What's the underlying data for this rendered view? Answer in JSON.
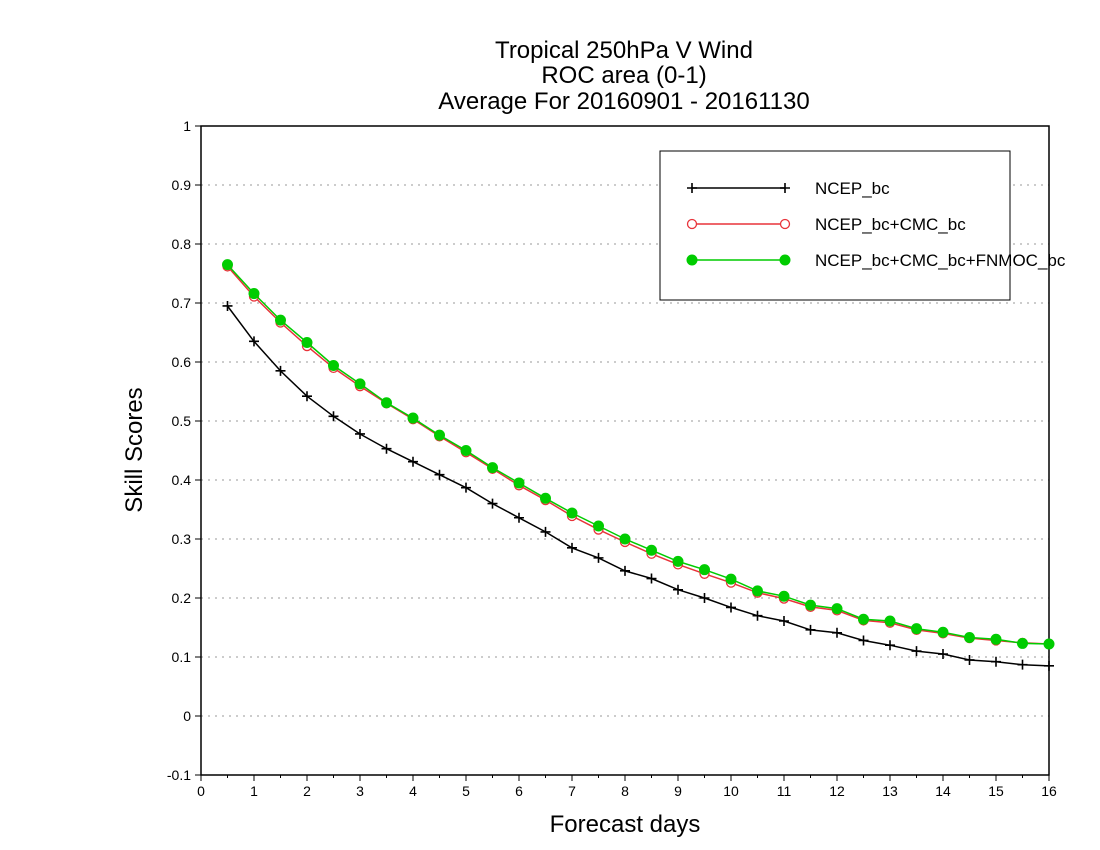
{
  "chart_data": {
    "type": "line",
    "title_lines": [
      "Tropical 250hPa V Wind",
      "ROC area (0-1)",
      "Average For 20160901 - 20161130"
    ],
    "xlabel": "Forecast days",
    "ylabel": "Skill Scores",
    "xlim": [
      0,
      16
    ],
    "ylim": [
      -0.1,
      1
    ],
    "xticks": [
      0,
      1,
      2,
      3,
      4,
      5,
      6,
      7,
      8,
      9,
      10,
      11,
      12,
      13,
      14,
      15,
      16
    ],
    "yticks": [
      -0.1,
      0,
      0.1,
      0.2,
      0.3,
      0.4,
      0.5,
      0.6,
      0.7,
      0.8,
      0.9,
      1
    ],
    "ytick_labels": [
      "-0.1",
      "0",
      "0.1",
      "0.2",
      "0.3",
      "0.4",
      "0.5",
      "0.6",
      "0.7",
      "0.8",
      "0.9",
      "1"
    ],
    "grid": "horizontal dotted",
    "legend_position": "top-right",
    "x": [
      0.5,
      1.0,
      1.5,
      2.0,
      2.5,
      3.0,
      3.5,
      4.0,
      4.5,
      5.0,
      5.5,
      6.0,
      6.5,
      7.0,
      7.5,
      8.0,
      8.5,
      9.0,
      9.5,
      10.0,
      10.5,
      11.0,
      11.5,
      12.0,
      12.5,
      13.0,
      13.5,
      14.0,
      14.5,
      15.0,
      15.5,
      16.0
    ],
    "series": [
      {
        "name": "NCEP_bc",
        "color": "#000000",
        "marker": "plus",
        "values": [
          0.695,
          0.635,
          0.585,
          0.542,
          0.508,
          0.478,
          0.453,
          0.431,
          0.409,
          0.387,
          0.36,
          0.336,
          0.312,
          0.285,
          0.268,
          0.246,
          0.233,
          0.214,
          0.2,
          0.184,
          0.17,
          0.161,
          0.146,
          0.141,
          0.128,
          0.12,
          0.11,
          0.105,
          0.095,
          0.092,
          0.087,
          0.085
        ]
      },
      {
        "name": "NCEP_bc+CMC_bc",
        "color": "#e8333a",
        "marker": "open-circle",
        "values": [
          0.762,
          0.711,
          0.667,
          0.627,
          0.59,
          0.559,
          0.53,
          0.503,
          0.474,
          0.447,
          0.419,
          0.391,
          0.366,
          0.339,
          0.316,
          0.295,
          0.275,
          0.257,
          0.241,
          0.226,
          0.209,
          0.199,
          0.185,
          0.179,
          0.162,
          0.158,
          0.146,
          0.14,
          0.132,
          0.128,
          0.124,
          0.122
        ]
      },
      {
        "name": "NCEP_bc+CMC_bc+FNMOC_bc",
        "color": "#00cc00",
        "marker": "filled-circle",
        "values": [
          0.765,
          0.716,
          0.671,
          0.633,
          0.594,
          0.563,
          0.531,
          0.505,
          0.476,
          0.45,
          0.421,
          0.395,
          0.369,
          0.344,
          0.322,
          0.3,
          0.281,
          0.262,
          0.248,
          0.232,
          0.212,
          0.203,
          0.188,
          0.182,
          0.164,
          0.161,
          0.148,
          0.142,
          0.133,
          0.13,
          0.123,
          0.122
        ]
      }
    ]
  }
}
